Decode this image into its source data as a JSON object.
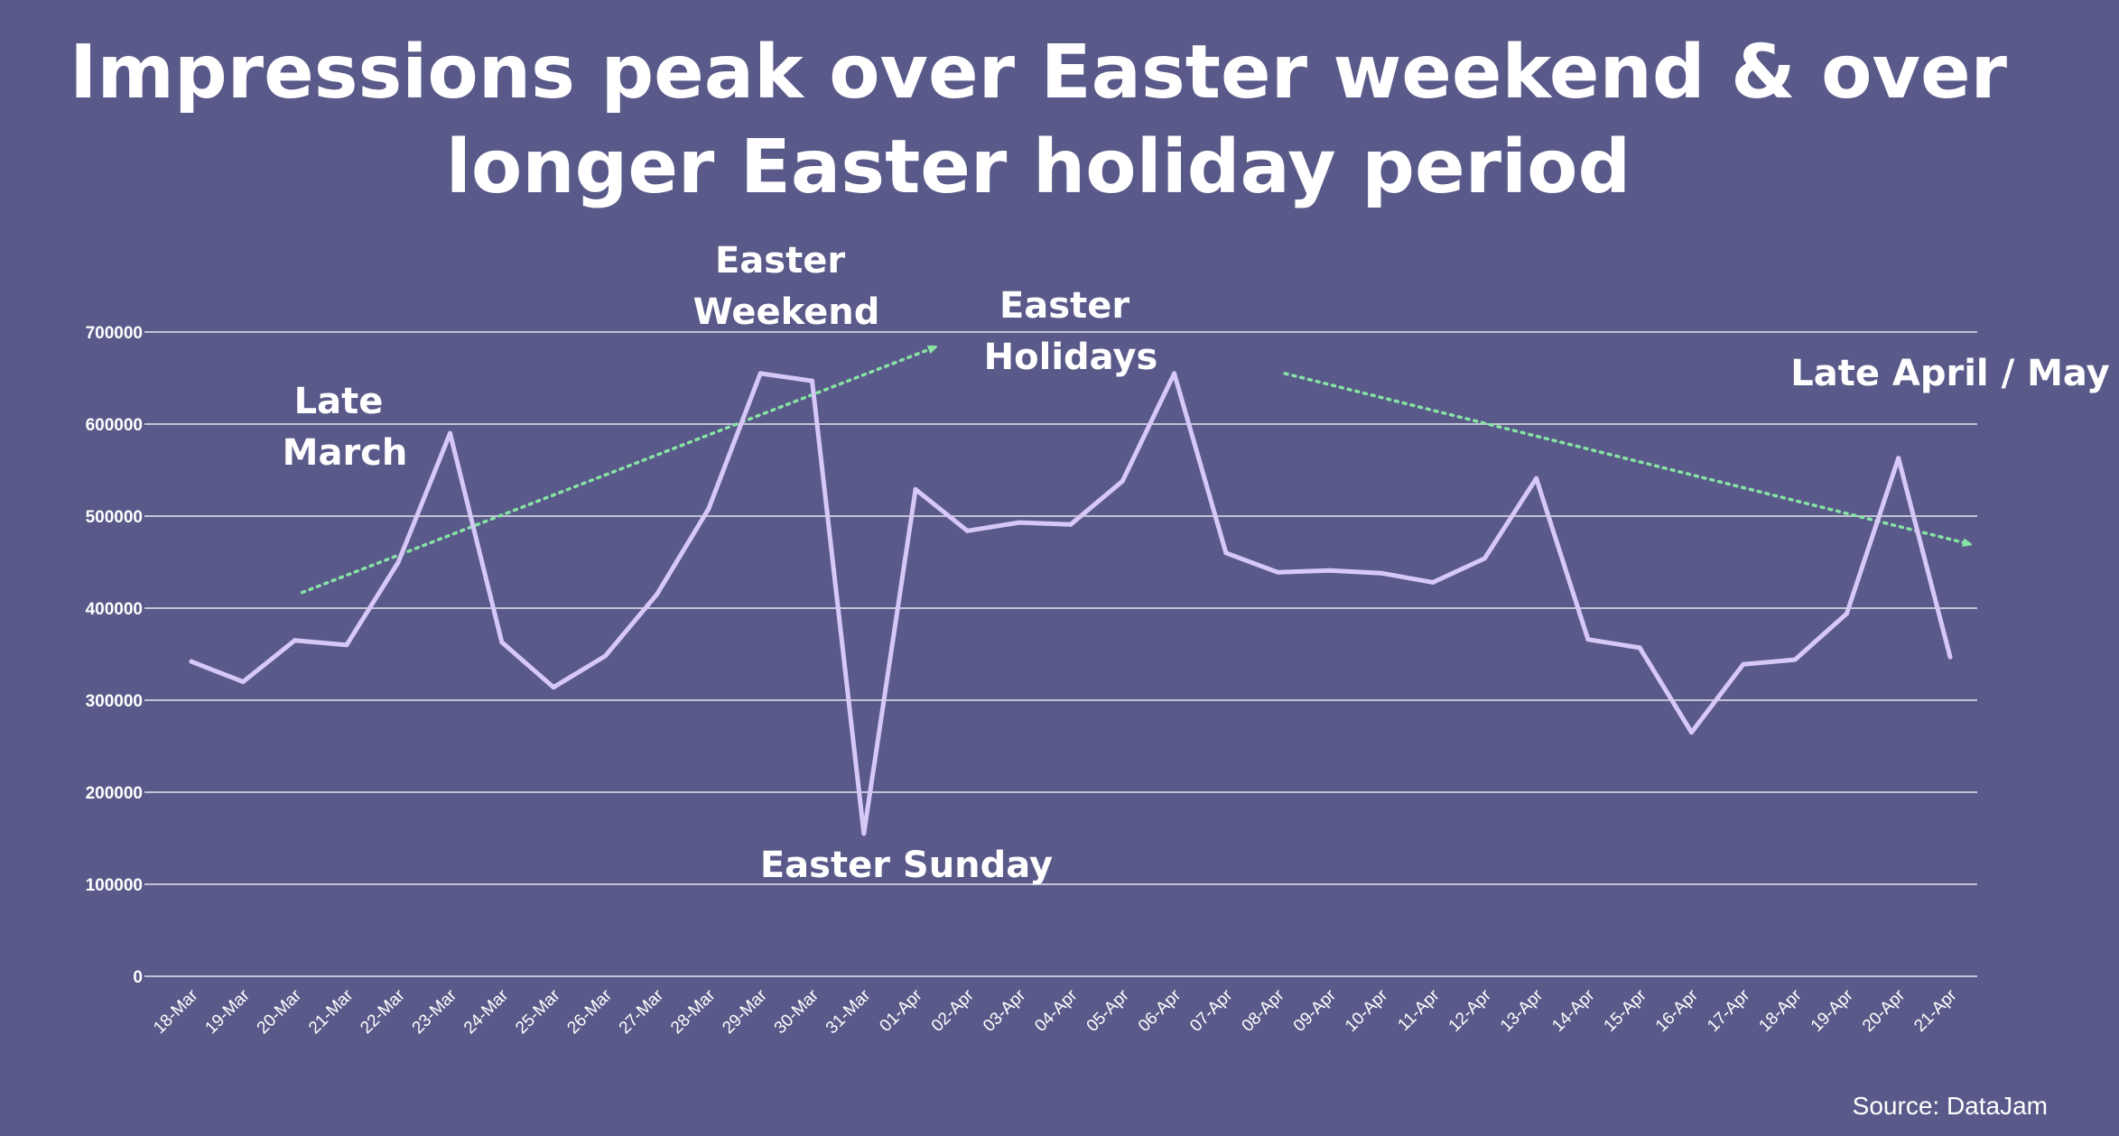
{
  "colors": {
    "background": "#5a5a8a",
    "line": "#d8c8f8",
    "trend": "#86e3a4",
    "text": "#ffffff"
  },
  "title_lines": [
    "Impressions peak over Easter weekend & over",
    "longer Easter holiday period"
  ],
  "source": "Source: DataJam",
  "chart_data": {
    "type": "line",
    "title": "Impressions peak over Easter weekend & over longer Easter holiday period",
    "xlabel": "",
    "ylabel": "",
    "ylim": [
      0,
      700000
    ],
    "yticks": [
      0,
      100000,
      200000,
      300000,
      400000,
      500000,
      600000,
      700000
    ],
    "ytick_labels": [
      "0",
      "100000",
      "200000",
      "300000",
      "400000",
      "500000",
      "600000",
      "700000"
    ],
    "grid": true,
    "legend": "none",
    "categories": [
      "18-Mar",
      "19-Mar",
      "20-Mar",
      "21-Mar",
      "22-Mar",
      "23-Mar",
      "24-Mar",
      "25-Mar",
      "26-Mar",
      "27-Mar",
      "28-Mar",
      "29-Mar",
      "30-Mar",
      "31-Mar",
      "01-Apr",
      "02-Apr",
      "03-Apr",
      "04-Apr",
      "05-Apr",
      "06-Apr",
      "07-Apr",
      "08-Apr",
      "09-Apr",
      "10-Apr",
      "11-Apr",
      "12-Apr",
      "13-Apr",
      "14-Apr",
      "15-Apr",
      "16-Apr",
      "17-Apr",
      "18-Apr",
      "19-Apr",
      "20-Apr",
      "21-Apr"
    ],
    "series": [
      {
        "values": [
          342000,
          320000,
          365000,
          360000,
          450000,
          590000,
          363000,
          314000,
          348000,
          415000,
          508000,
          655000,
          647000,
          155000,
          529000,
          484000,
          493000,
          491000,
          538000,
          655000,
          460000,
          439000,
          441000,
          438000,
          428000,
          454000,
          541000,
          366000,
          357000,
          265000,
          339000,
          344000,
          394000,
          563000,
          347000
        ]
      }
    ],
    "trend_arrows": [
      {
        "from_category": "20-Mar",
        "from_value": 417000,
        "to_category": "01-Apr",
        "to_value": 683000
      },
      {
        "from_category": "08-Apr",
        "from_value": 655000,
        "to_category": "21-Apr",
        "to_value": 470000
      }
    ],
    "annotations": [
      {
        "name": "late-march",
        "lines": [
          "Late",
          "March"
        ]
      },
      {
        "name": "easter-weekend",
        "lines": [
          "Easter",
          "Weekend"
        ]
      },
      {
        "name": "easter-holidays",
        "lines": [
          "Easter",
          "Holidays"
        ]
      },
      {
        "name": "easter-sunday",
        "lines": [
          "Easter Sunday"
        ]
      },
      {
        "name": "late-april-may",
        "lines": [
          "Late April / May"
        ]
      }
    ]
  }
}
